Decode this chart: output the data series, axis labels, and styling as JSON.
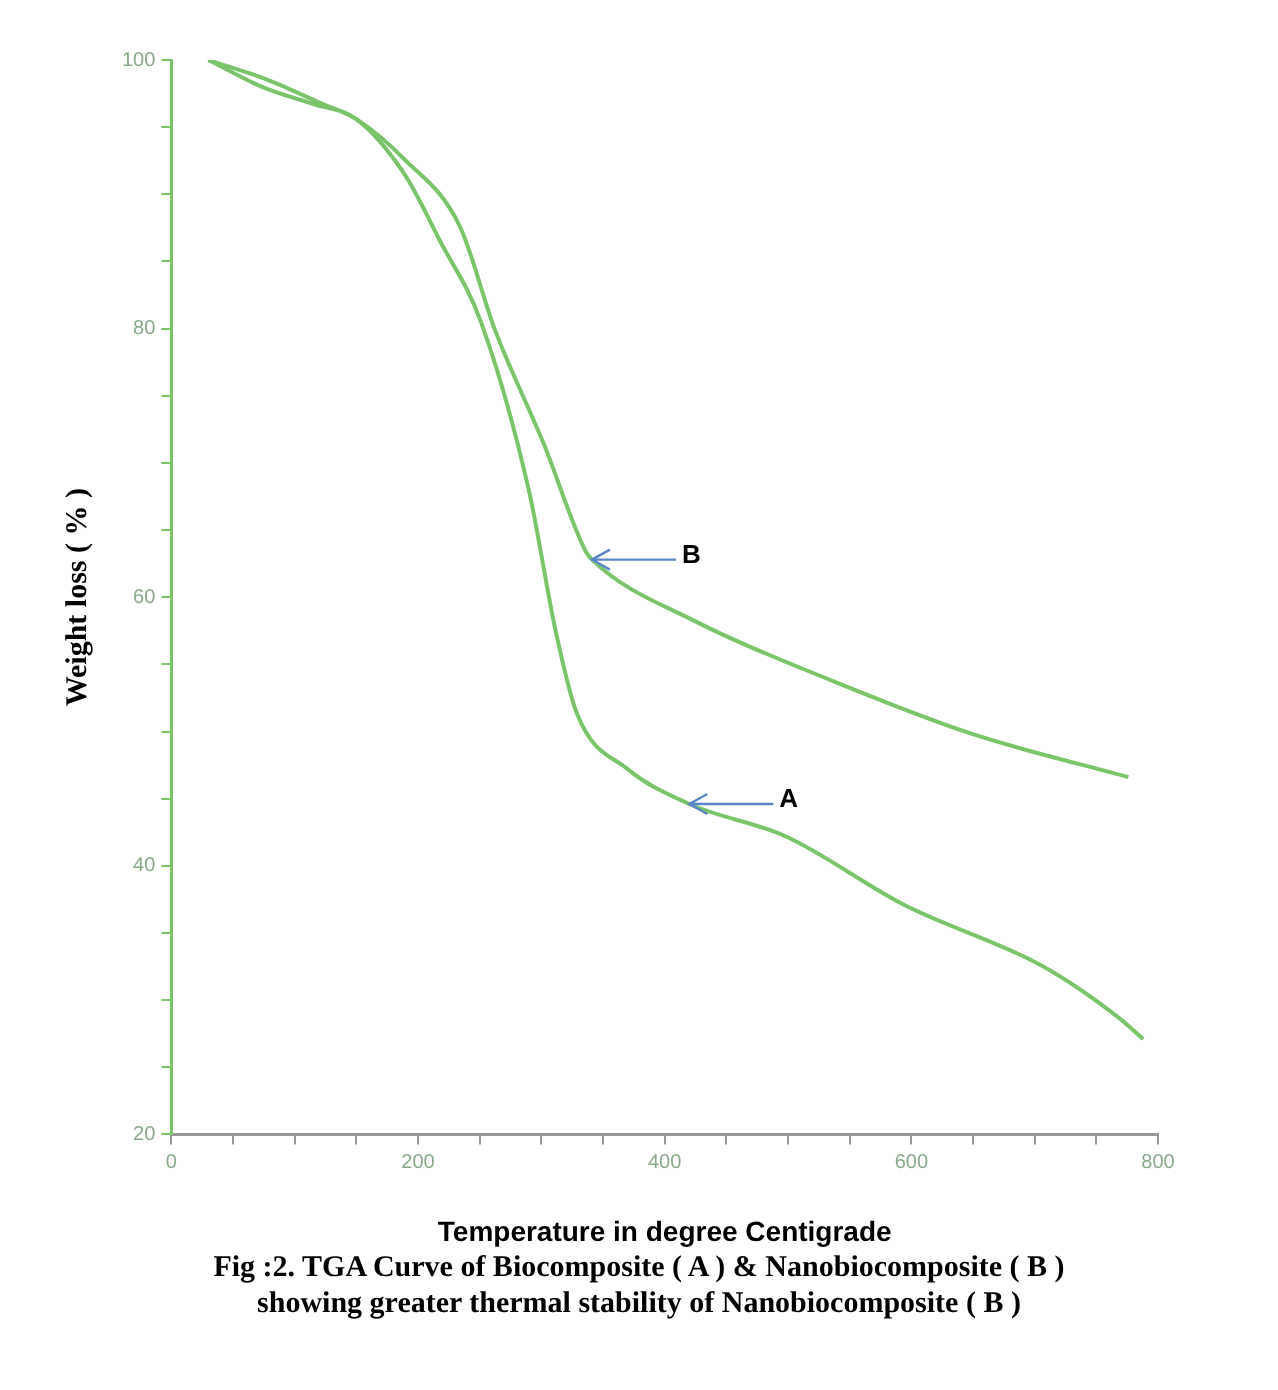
{
  "chart_data": {
    "type": "line",
    "title": "Fig :2.  TGA Curve of Biocomposite ( A ) & Nanobiocomposite ( B ) showing greater thermal stability of Nanobiocomposite ( B )",
    "xlabel": "Temperature in degree Centigrade",
    "ylabel": "Weight loss ( % )",
    "series": [
      {
        "color": "#7cc46c",
        "x": [
          30,
          76,
          116,
          150,
          189,
          218,
          251,
          290,
          312,
          329,
          370,
          420,
          498,
          594,
          707,
          768,
          788
        ],
        "values": [
          100,
          97.9,
          96.7,
          95.6,
          91.5,
          86.5,
          80.5,
          67.9,
          57.3,
          51.3,
          47.2,
          44.6,
          42.2,
          37.1,
          32.5,
          28.7,
          27.1
        ]
      },
      {
        "color": "#7cc46c",
        "x": [
          30,
          76,
          121,
          150,
          189,
          234,
          262,
          302,
          336,
          341,
          425,
          538,
          650,
          776
        ],
        "values": [
          100,
          98.6,
          96.8,
          95.6,
          92.6,
          87.6,
          80,
          71.4,
          63.4,
          62.8,
          58.2,
          53.7,
          49.8,
          46.6
        ]
      }
    ],
    "annotations": [
      {
        "text": "B",
        "x": 341,
        "y": 62.8
      },
      {
        "text": "A",
        "x": 420,
        "y": 44.6
      }
    ],
    "xlim": [
      0,
      800
    ],
    "ylim": [
      20,
      100
    ],
    "xticks": [
      0,
      {
        "value": 50,
        "label": null
      },
      {
        "value": 100,
        "label": null
      },
      {
        "value": 150,
        "label": null
      },
      200,
      {
        "value": 250,
        "label": null
      },
      {
        "value": 300,
        "label": null
      },
      {
        "value": 350,
        "label": null
      },
      400,
      {
        "value": 450,
        "label": null
      },
      {
        "value": 500,
        "label": null
      },
      {
        "value": 550,
        "label": null
      },
      600,
      {
        "value": 650,
        "label": null
      },
      {
        "value": 700,
        "label": null
      },
      {
        "value": 750,
        "label": null
      },
      800
    ],
    "yticks": [
      20,
      {
        "value": 25,
        "label": null
      },
      {
        "value": 30,
        "label": null
      },
      {
        "value": 35,
        "label": null
      },
      40,
      {
        "value": 45,
        "label": null
      },
      {
        "value": 50,
        "label": null
      },
      {
        "value": 55,
        "label": null
      },
      60,
      {
        "value": 65,
        "label": null
      },
      {
        "value": 70,
        "label": null
      },
      {
        "value": 75,
        "label": null
      },
      80,
      {
        "value": 85,
        "label": null
      },
      {
        "value": 90,
        "label": null
      },
      {
        "value": 95,
        "label": null
      },
      100
    ],
    "legend": false
  }
}
